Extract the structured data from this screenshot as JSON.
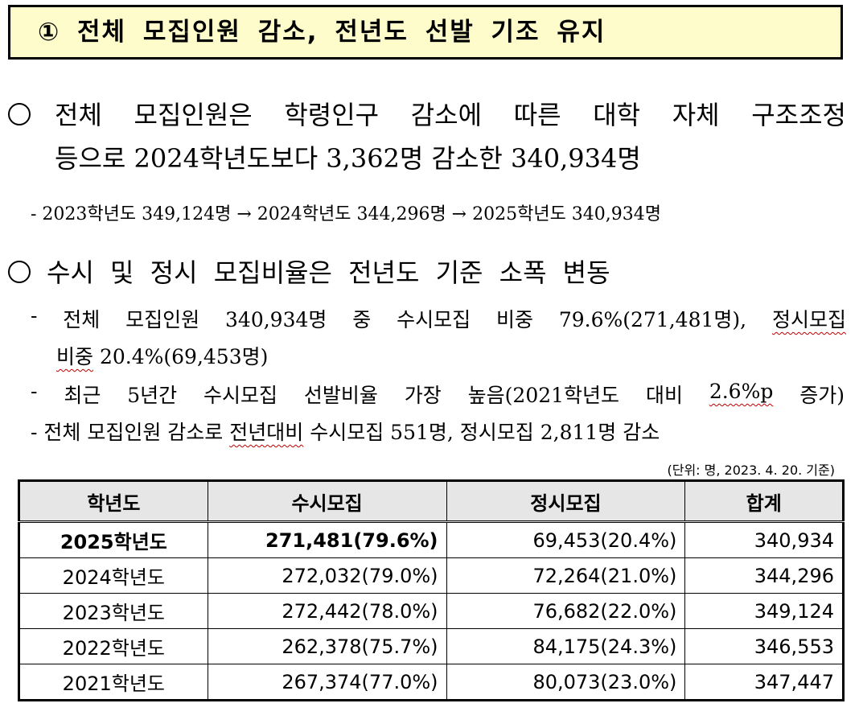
{
  "title": "① 전체 모집인원 감소, 전년도 선발 기조 유지",
  "bullet1": {
    "line1_words": [
      "전체",
      "모집인원은",
      "학령인구",
      "감소에",
      "따른",
      "대학",
      "자체",
      "구조조정"
    ],
    "line2": "등으로 2024학년도보다 3,362명 감소한 340,934명",
    "sub": "- 2023학년도 349,124명 → 2024학년도 344,296명 → 2025학년도 340,934명"
  },
  "bullet2": {
    "line1": "수시 및 정시 모집비율은 전년도 기준 소폭 변동",
    "sub1_words": [
      "-",
      "전체",
      "모집인원",
      "340,934명",
      "중",
      "수시모집",
      "비중",
      "79.6%(271,481명),"
    ],
    "sub1_tail": "정시모집",
    "sub1_cont_a": "비중",
    "sub1_cont_b": " 20.4%(69,453명)",
    "sub2_words": [
      "-",
      "최근",
      "5년간",
      "수시모집",
      "선발비율",
      "가장",
      "높음(2021학년도",
      "대비"
    ],
    "sub2_ul": "2.6%p",
    "sub2_end": "증가)",
    "sub3_a": "- 전체 모집인원 감소로 ",
    "sub3_ul": "전년대비",
    "sub3_b": " 수시모집 551명, 정시모집 2,811명 감소"
  },
  "unit_note": "(단위: 명, 2023. 4. 20. 기준)",
  "table": {
    "headers": [
      "학년도",
      "수시모집",
      "정시모집",
      "합계"
    ],
    "rows": [
      [
        "2025학년도",
        "271,481(79.6%)",
        "69,453(20.4%)",
        "340,934"
      ],
      [
        "2024학년도",
        "272,032(79.0%)",
        "72,264(21.0%)",
        "344,296"
      ],
      [
        "2023학년도",
        "272,442(78.0%)",
        "76,682(22.0%)",
        "349,124"
      ],
      [
        "2022학년도",
        "262,378(75.7%)",
        "84,175(24.3%)",
        "346,553"
      ],
      [
        "2021학년도",
        "267,374(77.0%)",
        "80,073(23.0%)",
        "347,447"
      ]
    ]
  }
}
